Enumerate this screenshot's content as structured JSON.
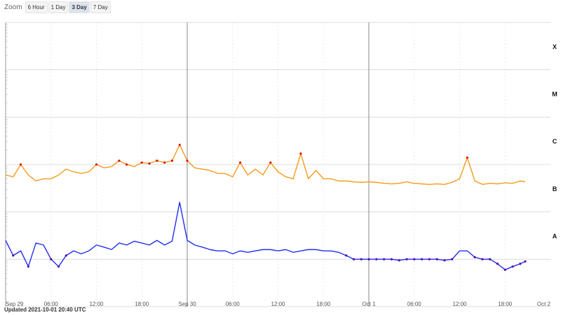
{
  "zoom": {
    "label": "Zoom",
    "buttons": [
      "6 Hour",
      "1 Day",
      "3 Day",
      "7 Day"
    ],
    "active": "3 Day"
  },
  "updated_text": "Updated 2021-10-01 20:40 UTC",
  "chart_data": {
    "type": "line",
    "title": "",
    "xlabel": "",
    "ylabel": "",
    "scale": "log",
    "ylim": [
      1e-09,
      0.001
    ],
    "xlim": [
      "2021-09-29T00:00",
      "2021-10-02T00:00"
    ],
    "grid": true,
    "flare_classes": [
      "X",
      "M",
      "C",
      "B",
      "A"
    ],
    "x_tick_labels": [
      "Sep 29",
      "06:00",
      "12:00",
      "18:00",
      "Sep 30",
      "06:00",
      "12:00",
      "18:00",
      "Oct 1",
      "06:00",
      "12:00",
      "18:00",
      "Oct 2"
    ],
    "colors": {
      "long": "#f59a1a",
      "long_high": "#e01010",
      "short": "#1f2ff0",
      "short_low": "#5a0aa8"
    },
    "series": [
      {
        "key": "long",
        "x": [
          "2021-09-29T00:00",
          "2021-09-29T01:00",
          "2021-09-29T02:00",
          "2021-09-29T03:00",
          "2021-09-29T04:00",
          "2021-09-29T05:00",
          "2021-09-29T06:00",
          "2021-09-29T07:00",
          "2021-09-29T08:00",
          "2021-09-29T09:00",
          "2021-09-29T10:00",
          "2021-09-29T11:00",
          "2021-09-29T12:00",
          "2021-09-29T13:00",
          "2021-09-29T14:00",
          "2021-09-29T15:00",
          "2021-09-29T16:00",
          "2021-09-29T17:00",
          "2021-09-29T18:00",
          "2021-09-29T19:00",
          "2021-09-29T20:00",
          "2021-09-29T21:00",
          "2021-09-29T22:00",
          "2021-09-29T23:00",
          "2021-09-30T00:00",
          "2021-09-30T01:00",
          "2021-09-30T02:00",
          "2021-09-30T03:00",
          "2021-09-30T04:00",
          "2021-09-30T05:00",
          "2021-09-30T06:00",
          "2021-09-30T07:00",
          "2021-09-30T08:00",
          "2021-09-30T09:00",
          "2021-09-30T10:00",
          "2021-09-30T11:00",
          "2021-09-30T12:00",
          "2021-09-30T13:00",
          "2021-09-30T14:00",
          "2021-09-30T15:00",
          "2021-09-30T16:00",
          "2021-09-30T17:00",
          "2021-09-30T18:00",
          "2021-09-30T19:00",
          "2021-09-30T20:00",
          "2021-09-30T21:00",
          "2021-09-30T22:00",
          "2021-09-30T23:00",
          "2021-10-01T00:00",
          "2021-10-01T01:00",
          "2021-10-01T02:00",
          "2021-10-01T03:00",
          "2021-10-01T04:00",
          "2021-10-01T05:00",
          "2021-10-01T06:00",
          "2021-10-01T07:00",
          "2021-10-01T08:00",
          "2021-10-01T09:00",
          "2021-10-01T10:00",
          "2021-10-01T11:00",
          "2021-10-01T12:00",
          "2021-10-01T13:00",
          "2021-10-01T14:00",
          "2021-10-01T15:00",
          "2021-10-01T16:00",
          "2021-10-01T17:00",
          "2021-10-01T18:00",
          "2021-10-01T19:00",
          "2021-10-01T20:00",
          "2021-10-01T20:40"
        ],
        "y": [
          6e-07,
          5.5e-07,
          1e-06,
          6e-07,
          4.5e-07,
          5e-07,
          5e-07,
          6e-07,
          8e-07,
          7e-07,
          6.5e-07,
          7e-07,
          1e-06,
          8.5e-07,
          9e-07,
          1.2e-06,
          1e-06,
          9e-07,
          1.1e-06,
          1.05e-06,
          1.2e-06,
          1.1e-06,
          1.2e-06,
          2.6e-06,
          1.2e-06,
          8.5e-07,
          8e-07,
          7.5e-07,
          6.5e-07,
          6.5e-07,
          5.5e-07,
          1.1e-06,
          6e-07,
          8e-07,
          6e-07,
          1.1e-06,
          7e-07,
          5.5e-07,
          5e-07,
          1.7e-06,
          5e-07,
          7.5e-07,
          5e-07,
          5e-07,
          4.5e-07,
          4.5e-07,
          4.3e-07,
          4.2e-07,
          4.3e-07,
          4.2e-07,
          4e-07,
          3.9e-07,
          4e-07,
          4.3e-07,
          4e-07,
          3.9e-07,
          3.8e-07,
          3.9e-07,
          3.8e-07,
          4.2e-07,
          5e-07,
          1.4e-06,
          4.5e-07,
          3.8e-07,
          4e-07,
          3.9e-07,
          4.1e-07,
          4e-07,
          4.5e-07,
          4.3e-07
        ]
      },
      {
        "key": "short",
        "x": [
          "2021-09-29T00:00",
          "2021-09-29T01:00",
          "2021-09-29T02:00",
          "2021-09-29T03:00",
          "2021-09-29T04:00",
          "2021-09-29T05:00",
          "2021-09-29T06:00",
          "2021-09-29T07:00",
          "2021-09-29T08:00",
          "2021-09-29T09:00",
          "2021-09-29T10:00",
          "2021-09-29T11:00",
          "2021-09-29T12:00",
          "2021-09-29T13:00",
          "2021-09-29T14:00",
          "2021-09-29T15:00",
          "2021-09-29T16:00",
          "2021-09-29T17:00",
          "2021-09-29T18:00",
          "2021-09-29T19:00",
          "2021-09-29T20:00",
          "2021-09-29T21:00",
          "2021-09-29T22:00",
          "2021-09-29T23:00",
          "2021-09-30T00:00",
          "2021-09-30T01:00",
          "2021-09-30T02:00",
          "2021-09-30T03:00",
          "2021-09-30T04:00",
          "2021-09-30T05:00",
          "2021-09-30T06:00",
          "2021-09-30T07:00",
          "2021-09-30T08:00",
          "2021-09-30T09:00",
          "2021-09-30T10:00",
          "2021-09-30T11:00",
          "2021-09-30T12:00",
          "2021-09-30T13:00",
          "2021-09-30T14:00",
          "2021-09-30T15:00",
          "2021-09-30T16:00",
          "2021-09-30T17:00",
          "2021-09-30T18:00",
          "2021-09-30T19:00",
          "2021-09-30T20:00",
          "2021-09-30T21:00",
          "2021-09-30T22:00",
          "2021-09-30T23:00",
          "2021-10-01T00:00",
          "2021-10-01T01:00",
          "2021-10-01T02:00",
          "2021-10-01T03:00",
          "2021-10-01T04:00",
          "2021-10-01T05:00",
          "2021-10-01T06:00",
          "2021-10-01T07:00",
          "2021-10-01T08:00",
          "2021-10-01T09:00",
          "2021-10-01T10:00",
          "2021-10-01T11:00",
          "2021-10-01T12:00",
          "2021-10-01T13:00",
          "2021-10-01T14:00",
          "2021-10-01T15:00",
          "2021-10-01T16:00",
          "2021-10-01T17:00",
          "2021-10-01T18:00",
          "2021-10-01T19:00",
          "2021-10-01T20:00",
          "2021-10-01T20:40"
        ],
        "y": [
          2.5e-08,
          1.2e-08,
          1.5e-08,
          7e-09,
          2.2e-08,
          2e-08,
          1e-08,
          7e-09,
          1.2e-08,
          1.5e-08,
          1.3e-08,
          1.5e-08,
          2e-08,
          1.8e-08,
          1.6e-08,
          2.2e-08,
          2e-08,
          2.4e-08,
          2.2e-08,
          2e-08,
          2.5e-08,
          2e-08,
          2.4e-08,
          1.6e-07,
          2.5e-08,
          2e-08,
          1.8e-08,
          1.6e-08,
          1.5e-08,
          1.5e-08,
          1.3e-08,
          1.5e-08,
          1.4e-08,
          1.5e-08,
          1.6e-08,
          1.6e-08,
          1.5e-08,
          1.6e-08,
          1.4e-08,
          1.5e-08,
          1.6e-08,
          1.6e-08,
          1.5e-08,
          1.5e-08,
          1.4e-08,
          1.2e-08,
          1e-08,
          1e-08,
          1e-08,
          1e-08,
          1e-08,
          1e-08,
          9.5e-09,
          1e-08,
          1e-08,
          1e-08,
          1e-08,
          1e-08,
          9.5e-09,
          1e-08,
          1.5e-08,
          1.5e-08,
          1.1e-08,
          1e-08,
          1e-08,
          8e-09,
          6e-09,
          7e-09,
          8e-09,
          9e-09
        ]
      }
    ]
  }
}
